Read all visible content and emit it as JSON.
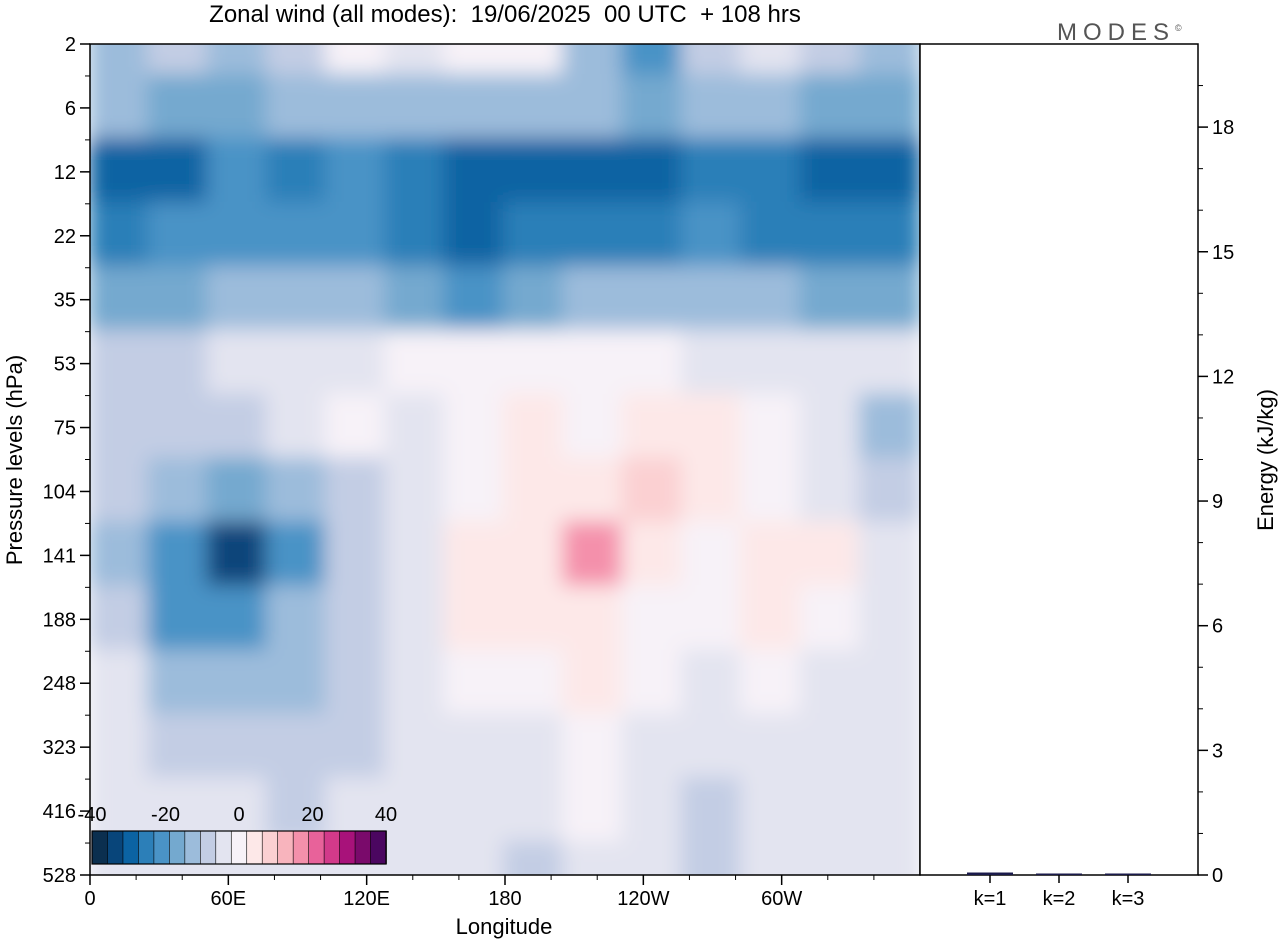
{
  "chart_data": [
    {
      "type": "heatmap",
      "title": "Zonal wind (all modes):  19/06/2025  00 UTC  + 108 hrs",
      "xlabel": "Longitude",
      "ylabel": "Pressure levels (hPa)",
      "x_ticks": [
        "0",
        "60E",
        "120E",
        "180",
        "120W",
        "60W"
      ],
      "y_ticks": [
        "2",
        "6",
        "12",
        "22",
        "35",
        "53",
        "75",
        "104",
        "141",
        "188",
        "248",
        "323",
        "416",
        "528"
      ],
      "y_scale": "log",
      "colorbar": {
        "range": [
          -40,
          40
        ],
        "step": 5,
        "ticks": [
          "-40",
          "-20",
          "0",
          "20",
          "40"
        ],
        "colors": [
          "#0b2f4f",
          "#08457a",
          "#0b63a3",
          "#2c7fb8",
          "#4a93c6",
          "#74a9cf",
          "#9cbcdb",
          "#c3cde4",
          "#e3e4f0",
          "#f7f2f8",
          "#fde8e8",
          "#fbd0d2",
          "#f8b4bd",
          "#f490ab",
          "#e8629a",
          "#d23a8a",
          "#a8127a",
          "#7a0a6b",
          "#4b0660"
        ]
      },
      "field_bands": [
        {
          "level": "2",
          "values": [
            -8,
            -5,
            -12,
            -3,
            4,
            2,
            6,
            3,
            -10,
            -18,
            -4,
            2,
            -6,
            -10
          ]
        },
        {
          "level": "6",
          "values": [
            -12,
            -14,
            -16,
            -12,
            -10,
            -8,
            -8,
            -10,
            -12,
            -14,
            -12,
            -10,
            -14,
            -16
          ]
        },
        {
          "level": "12",
          "values": [
            -30,
            -28,
            -22,
            -26,
            -22,
            -26,
            -28,
            -30,
            -32,
            -28,
            -26,
            -24,
            -30,
            -30
          ]
        },
        {
          "level": "22",
          "values": [
            -24,
            -22,
            -20,
            -18,
            -22,
            -26,
            -28,
            -26,
            -26,
            -24,
            -22,
            -24,
            -26,
            -24
          ]
        },
        {
          "level": "35",
          "values": [
            -16,
            -14,
            -12,
            -10,
            -12,
            -16,
            -18,
            -14,
            -12,
            -12,
            -10,
            -12,
            -14,
            -14
          ]
        },
        {
          "level": "53",
          "values": [
            -6,
            -4,
            -2,
            0,
            2,
            4,
            4,
            6,
            4,
            3,
            2,
            1,
            0,
            -2
          ]
        },
        {
          "level": "75",
          "values": [
            -4,
            -6,
            -4,
            2,
            3,
            2,
            6,
            8,
            6,
            8,
            12,
            6,
            -2,
            -8
          ]
        },
        {
          "level": "104",
          "values": [
            -6,
            -10,
            -16,
            -10,
            -4,
            -2,
            6,
            10,
            12,
            14,
            10,
            4,
            -2,
            -6
          ]
        },
        {
          "level": "141",
          "values": [
            -8,
            -20,
            -34,
            -20,
            -6,
            -2,
            12,
            12,
            24,
            8,
            4,
            12,
            8,
            -2
          ]
        },
        {
          "level": "188",
          "values": [
            -6,
            -18,
            -22,
            -12,
            -4,
            -2,
            8,
            8,
            12,
            6,
            4,
            8,
            4,
            -2
          ]
        },
        {
          "level": "248",
          "values": [
            -2,
            -10,
            -8,
            -8,
            -4,
            -2,
            6,
            4,
            8,
            4,
            2,
            4,
            2,
            -2
          ]
        },
        {
          "level": "323",
          "values": [
            0,
            -4,
            -4,
            -6,
            -4,
            -2,
            2,
            2,
            6,
            2,
            0,
            2,
            0,
            -2
          ]
        },
        {
          "level": "416",
          "values": [
            0,
            -2,
            -2,
            -4,
            -2,
            0,
            2,
            -2,
            4,
            0,
            -4,
            0,
            0,
            -2
          ]
        },
        {
          "level": "528",
          "values": [
            0,
            -2,
            -2,
            -2,
            -2,
            0,
            0,
            -4,
            2,
            -2,
            -6,
            0,
            0,
            -2
          ]
        }
      ]
    },
    {
      "type": "bar",
      "categories": [
        "k=1",
        "k=2",
        "k=3"
      ],
      "values": [
        0.06,
        0.03,
        0.01
      ],
      "ylabel": "Energy (kJ/kg)",
      "ylim": [
        0,
        20
      ],
      "y_ticks": [
        "0",
        "3",
        "6",
        "9",
        "12",
        "15",
        "18"
      ],
      "bar_color": "#1a1a4a"
    }
  ],
  "logo": {
    "text": "MODES",
    "mark": "©"
  }
}
